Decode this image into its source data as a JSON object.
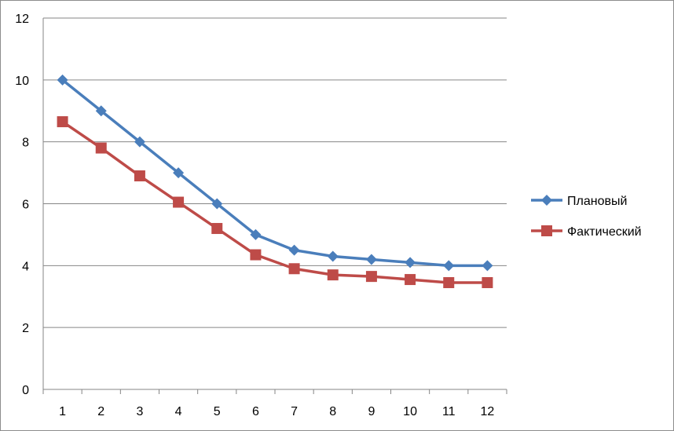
{
  "chart_data": {
    "type": "line",
    "title": "",
    "xlabel": "",
    "ylabel": "",
    "categories": [
      "1",
      "2",
      "3",
      "4",
      "5",
      "6",
      "7",
      "8",
      "9",
      "10",
      "11",
      "12"
    ],
    "ylim": [
      0,
      12
    ],
    "yticks": [
      "0",
      "2",
      "4",
      "6",
      "8",
      "10",
      "12"
    ],
    "grid": true,
    "legend_position": "right",
    "series": [
      {
        "name": "Плановый",
        "color": "#4a7ebb",
        "marker": "diamond",
        "values": [
          10,
          9,
          8,
          7,
          6,
          5,
          4.5,
          4.3,
          4.2,
          4.1,
          4.0,
          4.0
        ]
      },
      {
        "name": "Фактический",
        "color": "#be4b48",
        "marker": "square",
        "values": [
          8.65,
          7.8,
          6.9,
          6.05,
          5.2,
          4.35,
          3.9,
          3.7,
          3.65,
          3.55,
          3.45,
          3.45
        ]
      }
    ]
  }
}
